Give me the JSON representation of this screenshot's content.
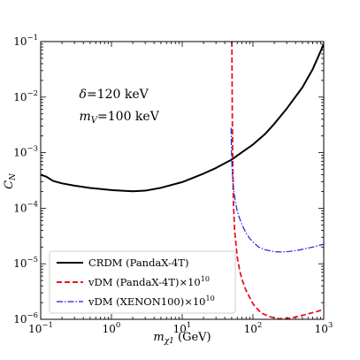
{
  "chart_data": {
    "type": "line",
    "xscale": "log",
    "yscale": "log",
    "xlim": [
      0.1,
      1000
    ],
    "ylim": [
      1e-06,
      0.1
    ],
    "xlabel": "m_χ1 (GeV)",
    "xlabel_main": "m",
    "xlabel_sub": "χ1",
    "xlabel_unit": " (GeV)",
    "ylabel": "C_N",
    "ylabel_main": "C",
    "ylabel_sub": "N",
    "x_ticks": [
      {
        "value": 0.1,
        "mant": "10",
        "exp": "−1"
      },
      {
        "value": 1,
        "mant": "10",
        "exp": "0"
      },
      {
        "value": 10,
        "mant": "10",
        "exp": "1"
      },
      {
        "value": 100,
        "mant": "10",
        "exp": "2"
      },
      {
        "value": 1000,
        "mant": "10",
        "exp": "3"
      }
    ],
    "y_ticks": [
      {
        "value": 1e-06,
        "mant": "10",
        "exp": "−6"
      },
      {
        "value": 1e-05,
        "mant": "10",
        "exp": "−5"
      },
      {
        "value": 0.0001,
        "mant": "10",
        "exp": "−4"
      },
      {
        "value": 0.001,
        "mant": "10",
        "exp": "−3"
      },
      {
        "value": 0.01,
        "mant": "10",
        "exp": "−2"
      },
      {
        "value": 0.1,
        "mant": "10",
        "exp": "−1"
      }
    ],
    "annotations": [
      {
        "sym": "δ",
        "sub": "",
        "text": "=120 keV",
        "x": 0.35,
        "y": 0.0095
      },
      {
        "sym": "m",
        "sub": "V",
        "text": "=100 keV",
        "x": 0.35,
        "y": 0.0038
      }
    ],
    "legend_position": "bottom-left",
    "series": [
      {
        "name": "CRDM (PandaX-4T)",
        "legend_text": "CRDM (PandaX-4T)",
        "legend_exp": "",
        "color": "#000000",
        "dash": "solid",
        "x": [
          0.1,
          0.12,
          0.15,
          0.2,
          0.3,
          0.5,
          1,
          2,
          3,
          5,
          10,
          20,
          30,
          50,
          70,
          100,
          150,
          200,
          300,
          500,
          700,
          1000
        ],
        "y": [
          0.0004,
          0.00037,
          0.00031,
          0.00028,
          0.000255,
          0.000232,
          0.000212,
          0.000202,
          0.000207,
          0.000233,
          0.000295,
          0.00042,
          0.00053,
          0.00075,
          0.00102,
          0.0014,
          0.0022,
          0.0033,
          0.0062,
          0.015,
          0.032,
          0.09
        ]
      },
      {
        "name": "vDM (PandaX-4T)×10^10",
        "legend_text": "vDM (PandaX-4T)×10",
        "legend_exp": "10",
        "color": "#e8141e",
        "dash": "dashed",
        "x": [
          50.3,
          50.6,
          51,
          52,
          53,
          55,
          60,
          65,
          70,
          80,
          100,
          130,
          170,
          230,
          300,
          400,
          550,
          750,
          1000
        ],
        "y": [
          0.1,
          0.03,
          0.005,
          0.0005,
          0.00012,
          4e-05,
          1.3e-05,
          7.5e-06,
          5.2e-06,
          3.3e-06,
          1.9e-06,
          1.3e-06,
          1.12e-06,
          1.02e-06,
          1.03e-06,
          1.1e-06,
          1.22e-06,
          1.35e-06,
          1.5e-06
        ]
      },
      {
        "name": "vDM (XENON100)×10^10",
        "legend_text": "vDM (XENON100)×10",
        "legend_exp": "10",
        "color": "#1f1fdc",
        "dash": "dashdot",
        "x": [
          49,
          49.3,
          49.7,
          50.2,
          51,
          52,
          54,
          57,
          60,
          65,
          70,
          80,
          90,
          100,
          120,
          150,
          200,
          250,
          300,
          400,
          500,
          700,
          1000
        ],
        "y": [
          0.0028,
          0.0018,
          0.0011,
          0.0007,
          0.00045,
          0.0003,
          0.00019,
          0.00012,
          8.85e-05,
          6.46e-05,
          5.05e-05,
          3.55e-05,
          2.85e-05,
          2.45e-05,
          2e-05,
          1.78e-05,
          1.65e-05,
          1.63e-05,
          1.65e-05,
          1.72e-05,
          1.82e-05,
          2e-05,
          2.25e-05
        ]
      }
    ]
  }
}
